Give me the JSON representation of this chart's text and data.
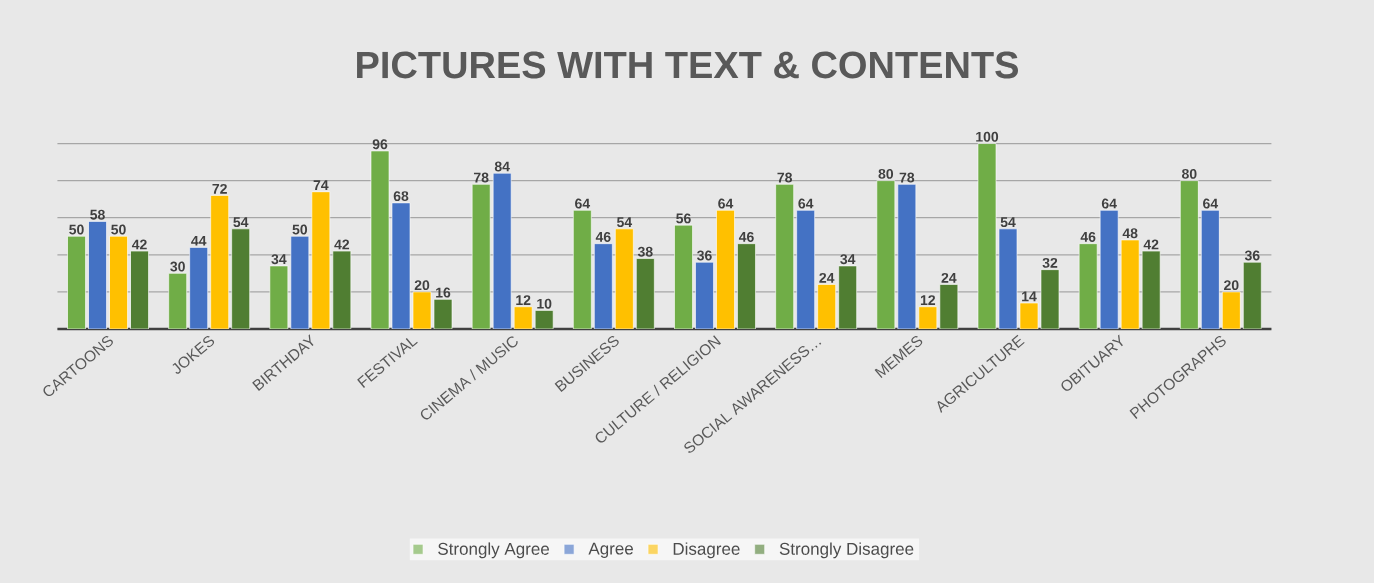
{
  "chart_data": {
    "type": "bar",
    "title": "PICTURES WITH TEXT & CONTENTS",
    "categories": [
      "CARTOONS",
      "JOKES",
      "BIRTHDAY",
      "FESTIVAL",
      "CINEMA / MUSIC",
      "BUSINESS",
      "CULTURE / RELIGION",
      "SOCIAL AWARENESS…",
      "MEMES",
      "AGRICULTURE",
      "OBITUARY",
      "PHOTOGRAPHS"
    ],
    "series": [
      {
        "name": "Strongly Agree",
        "color": "#70ad47",
        "values": [
          50,
          30,
          34,
          96,
          78,
          64,
          56,
          78,
          80,
          100,
          46,
          80
        ]
      },
      {
        "name": "Agree",
        "color": "#4472c4",
        "values": [
          58,
          44,
          50,
          68,
          84,
          46,
          36,
          64,
          78,
          54,
          64,
          64
        ]
      },
      {
        "name": "Disagree",
        "color": "#ffc000",
        "values": [
          50,
          72,
          74,
          20,
          12,
          54,
          64,
          24,
          12,
          14,
          48,
          20
        ]
      },
      {
        "name": "Strongly Disagree",
        "color": "#507e32",
        "values": [
          42,
          54,
          42,
          16,
          10,
          38,
          46,
          34,
          24,
          32,
          42,
          36
        ]
      }
    ],
    "tick_labels": "x",
    "grid": "y",
    "legend": "bottom",
    "data_labels": true
  }
}
